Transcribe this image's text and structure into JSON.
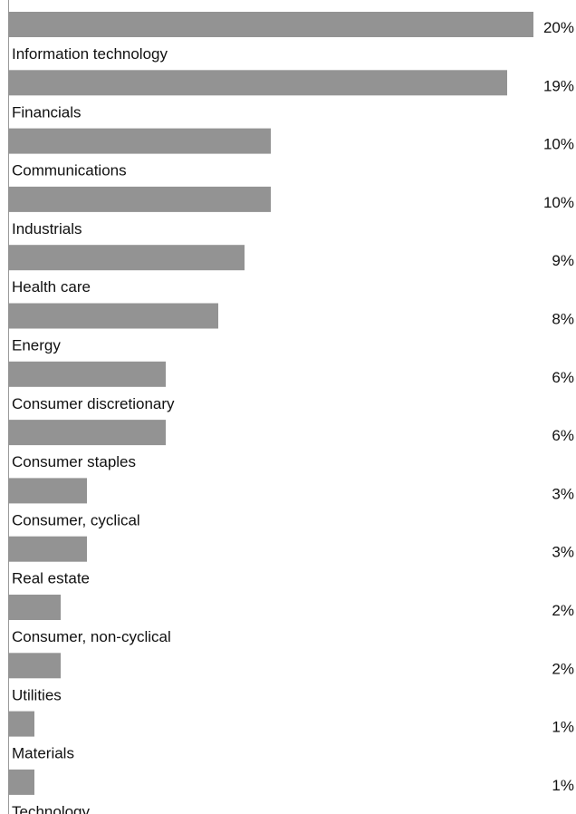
{
  "chart_data": {
    "type": "bar",
    "orientation": "horizontal",
    "categories": [
      "Information technology",
      "Financials",
      "Communications",
      "Industrials",
      "Health care",
      "Energy",
      "Consumer discretionary",
      "Consumer staples",
      "Consumer, cyclical",
      "Real estate",
      "Consumer, non-cyclical",
      "Utilities",
      "Materials",
      "Technology"
    ],
    "values": [
      20,
      19,
      10,
      10,
      9,
      8,
      6,
      6,
      3,
      3,
      2,
      2,
      1,
      1
    ],
    "value_labels": [
      "20%",
      "19%",
      "10%",
      "10%",
      "9%",
      "8%",
      "6%",
      "6%",
      "3%",
      "3%",
      "2%",
      "2%",
      "1%",
      "1%"
    ],
    "xlim": [
      0,
      20
    ],
    "grid": false,
    "legend": "none",
    "bar_color": "#939393",
    "axis_color": "#9a9a9a",
    "text_color": "#111111"
  }
}
